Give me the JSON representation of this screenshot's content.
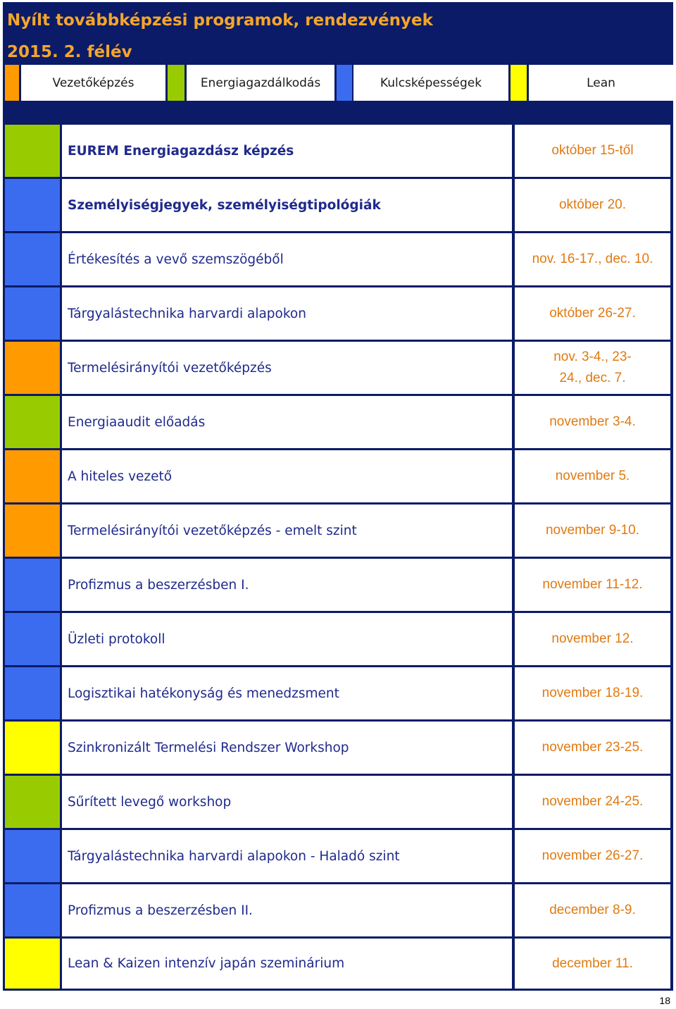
{
  "header": {
    "title_line1": "Nyílt továbbképzési programok, rendezvények",
    "title_line2": "2015. 2. félév"
  },
  "legend": [
    {
      "label": "Vezetőképzés",
      "color": "#ff9a00"
    },
    {
      "label": "Energiagazdálkodás",
      "color": "#99cc00"
    },
    {
      "label": "Kulcsképességek",
      "color": "#3b6cf0"
    },
    {
      "label": "Lean",
      "color": "#ffff00"
    }
  ],
  "colors": {
    "frame": "#0b1b68",
    "title": "#f4a62a",
    "course_text": "#1f2a8c",
    "date_text": "#e07a12"
  },
  "programs": [
    {
      "name": "EUREM Energiagazdász képzés",
      "date": "október 15-től",
      "category": "Energiagazdálkodás"
    },
    {
      "name": "Személyiségjegyek, személyiségtipológiák",
      "date": "október 20.",
      "category": "Kulcsképességek"
    },
    {
      "name": "Értékesítés a vevő szemszögéből",
      "date": "nov. 16-17., dec. 10.",
      "category": "Kulcsképességek"
    },
    {
      "name": "Tárgyalástechnika harvardi alapokon",
      "date": "október 26-27.",
      "category": "Kulcsképességek"
    },
    {
      "name": "Termelésirányítói vezetőképzés",
      "date": "nov. 3-4., 23-24., dec. 7.",
      "category": "Vezetőképzés"
    },
    {
      "name": "Energiaaudit előadás",
      "date": "november 3-4.",
      "category": "Energiagazdálkodás"
    },
    {
      "name": "A hiteles vezető",
      "date": "november 5.",
      "category": "Vezetőképzés"
    },
    {
      "name": "Termelésirányítói vezetőképzés - emelt szint",
      "date": "november 9-10.",
      "category": "Vezetőképzés"
    },
    {
      "name": "Profizmus a beszerzésben I.",
      "date": "november 11-12.",
      "category": "Kulcsképességek"
    },
    {
      "name": "Üzleti protokoll",
      "date": "november 12.",
      "category": "Kulcsképességek"
    },
    {
      "name": "Logisztikai hatékonyság és menedzsment",
      "date": "november 18-19.",
      "category": "Kulcsképességek"
    },
    {
      "name": "Szinkronizált Termelési Rendszer Workshop",
      "date": "november 23-25.",
      "category": "Lean"
    },
    {
      "name": "Sűrített levegő workshop",
      "date": "november 24-25.",
      "category": "Energiagazdálkodás"
    },
    {
      "name": "Tárgyalástechnika harvardi alapokon - Haladó szint",
      "date": "november 26-27.",
      "category": "Kulcsképességek"
    },
    {
      "name": "Profizmus a beszerzésben II.",
      "date": "december 8-9.",
      "category": "Kulcsképességek"
    },
    {
      "name": "Lean & Kaizen intenzív japán szeminárium",
      "date": "december 11.",
      "category": "Lean"
    }
  ],
  "page_number": "18"
}
